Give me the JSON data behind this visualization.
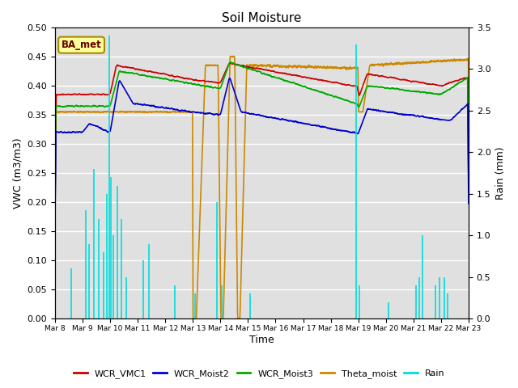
{
  "title": "Soil Moisture",
  "xlabel": "Time",
  "ylabel_left": "VWC (m3/m3)",
  "ylabel_right": "Rain (mm)",
  "ylim_left": [
    0.0,
    0.5
  ],
  "ylim_right": [
    0.0,
    3.5
  ],
  "yticks_left": [
    0.0,
    0.05,
    0.1,
    0.15,
    0.2,
    0.25,
    0.3,
    0.35,
    0.4,
    0.45,
    0.5
  ],
  "yticks_right": [
    0.0,
    0.5,
    1.0,
    1.5,
    2.0,
    2.5,
    3.0,
    3.5
  ],
  "xtick_labels": [
    "Mar 8",
    "Mar 9",
    "Mar 10",
    "Mar 11",
    "Mar 12",
    "Mar 13",
    "Mar 14",
    "Mar 15",
    "Mar 16",
    "Mar 17",
    "Mar 18",
    "Mar 19",
    "Mar 20",
    "Mar 21",
    "Mar 22",
    "Mar 23"
  ],
  "n_points": 3600,
  "xlim": [
    0,
    3599
  ],
  "color_wcr_vmc1": "#cc0000",
  "color_wcr_moist2": "#0000cc",
  "color_wcr_moist3": "#00aa00",
  "color_theta": "#cc8800",
  "color_rain": "#00dddd",
  "bg_color": "#e0e0e0",
  "annotation_text": "BA_met",
  "annotation_bg": "#ffff99",
  "annotation_border": "#aa8800",
  "legend_labels": [
    "WCR_VMC1",
    "WCR_Moist2",
    "WCR_Moist3",
    "Theta_moist",
    "Rain"
  ],
  "linewidth": 1.0
}
